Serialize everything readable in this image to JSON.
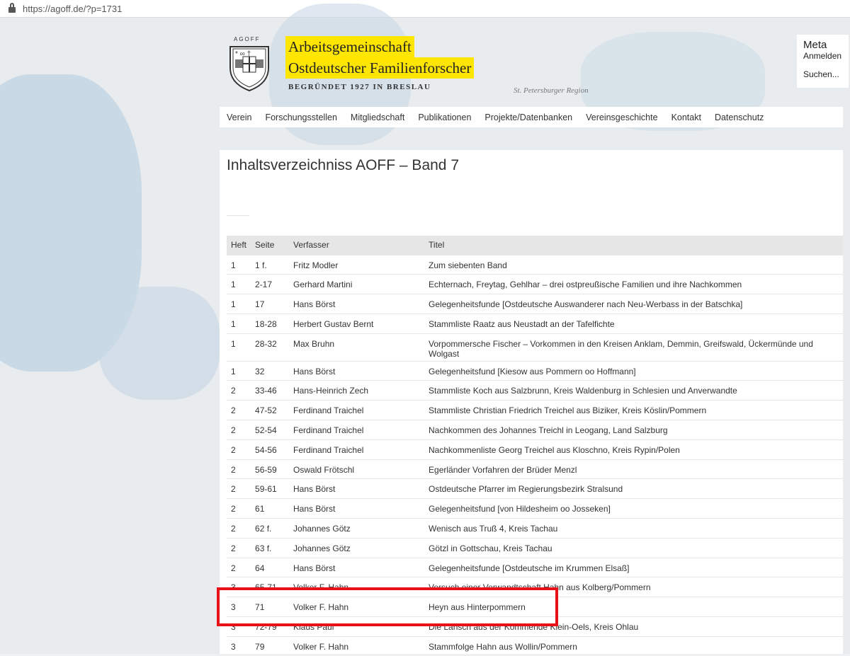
{
  "browser": {
    "url": "https://agoff.de/?p=1731"
  },
  "header": {
    "logo_text": "AGOFF",
    "title_line1": "Arbeitsgemeinschaft",
    "title_line2": "Ostdeutscher Familienforscher",
    "subtitle": "BEGRÜNDET 1927 IN BRESLAU",
    "region": "St. Petersburger Region",
    "accent": "#ffe600"
  },
  "meta": {
    "title": "Meta",
    "login": "Anmelden",
    "search": "Suchen..."
  },
  "nav": [
    "Verein",
    "Forschungsstellen",
    "Mitgliedschaft",
    "Publikationen",
    "Projekte/Datenbanken",
    "Vereinsgeschichte",
    "Kontakt",
    "Datenschutz"
  ],
  "page": {
    "title": "Inhaltsverzeichniss AOFF – Band 7"
  },
  "table": {
    "headers": [
      "Heft",
      "Seite",
      "Verfasser",
      "Titel"
    ],
    "rows": [
      [
        "1",
        "1 f.",
        "Fritz Modler",
        "Zum siebenten Band"
      ],
      [
        "1",
        "2-17",
        "Gerhard Martini",
        "Echternach, Freytag, Gehlhar – drei ostpreußische Familien und ihre Nachkommen"
      ],
      [
        "1",
        "17",
        "Hans Börst",
        "Gelegenheitsfunde [Ostdeutsche Auswanderer nach Neu-Werbass in der Batschka]"
      ],
      [
        "1",
        "18-28",
        "Herbert Gustav Bernt",
        "Stammliste Raatz aus Neustadt an der Tafelfichte"
      ],
      [
        "1",
        "28-32",
        "Max Bruhn",
        "Vorpommersche Fischer – Vorkommen in den Kreisen Anklam, Demmin, Greifswald, Ückermünde und Wolgast"
      ],
      [
        "1",
        "32",
        "Hans Börst",
        "Gelegenheitsfund [Kiesow aus Pommern oo Hoffmann]"
      ],
      [
        "2",
        "33-46",
        "Hans-Heinrich Zech",
        "Stammliste Koch aus Salzbrunn, Kreis Waldenburg in Schlesien und Anverwandte"
      ],
      [
        "2",
        "47-52",
        "Ferdinand Traichel",
        "Stammliste Christian Friedrich Treichel aus Biziker, Kreis Köslin/Pommern"
      ],
      [
        "2",
        "52-54",
        "Ferdinand Traichel",
        "Nachkommen des Johannes Treichl in Leogang, Land Salzburg"
      ],
      [
        "2",
        "54-56",
        "Ferdinand Traichel",
        "Nachkommenliste Georg Treichel aus Kloschno, Kreis Rypin/Polen"
      ],
      [
        "2",
        "56-59",
        "Oswald Frötschl",
        "Egerländer Vorfahren der Brüder Menzl"
      ],
      [
        "2",
        "59-61",
        "Hans Börst",
        "Ostdeutsche Pfarrer im Regierungsbezirk Stralsund"
      ],
      [
        "2",
        "61",
        "Hans Börst",
        "Gelegenheitsfund [von Hildesheim oo Josseken]"
      ],
      [
        "2",
        "62 f.",
        "Johannes Götz",
        "Wenisch aus Truß 4, Kreis Tachau"
      ],
      [
        "2",
        "63 f.",
        "Johannes Götz",
        "Götzl in Gottschau, Kreis Tachau"
      ],
      [
        "2",
        "64",
        "Hans Börst",
        "Gelegenheitsfunde [Ostdeutsche im Krummen Elsaß]"
      ],
      [
        "3",
        "65-71",
        "Volker F. Hahn",
        "Versuch einer Verwandtschaft Hahn aus Kolberg/Pommern"
      ],
      [
        "3",
        "71",
        "Volker F. Hahn",
        "Heyn aus Hinterpommern"
      ],
      [
        "3",
        "72-79",
        "Klaus Paul",
        "Die Lansch aus der Kommende Klein-Oels, Kreis Ohlau"
      ],
      [
        "3",
        "79",
        "Volker F. Hahn",
        "Stammfolge Hahn aus Wollin/Pommern"
      ]
    ]
  },
  "highlight_color": "#e8111a"
}
